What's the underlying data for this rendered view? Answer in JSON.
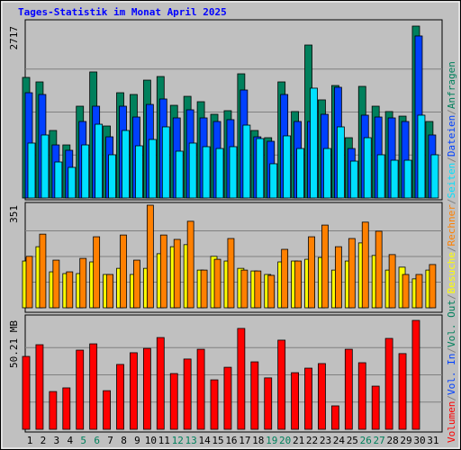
{
  "legend_separator": "/",
  "chart_data": [
    {
      "type": "bar",
      "title": "Tages-Statistik im Monat April 2025",
      "ylim": [
        0,
        2717
      ],
      "yticks": [
        2717
      ],
      "series": [
        {
          "name": "Anfragen",
          "color": "#00805c",
          "values": [
            1906,
            1835,
            1067,
            839,
            1451,
            1992,
            1138,
            1664,
            1636,
            1863,
            1920,
            1465,
            1607,
            1522,
            1323,
            1380,
            1963,
            1067,
            953,
            1835,
            1366,
            2418,
            1551,
            1778,
            953,
            1764,
            1451,
            1366,
            1294,
            2717,
            1209
          ]
        },
        {
          "name": "Dateien",
          "color": "#0040ff",
          "values": [
            1664,
            1636,
            839,
            754,
            1209,
            1451,
            967,
            1451,
            1280,
            1479,
            1565,
            1266,
            1394,
            1266,
            1209,
            1238,
            1707,
            967,
            896,
            1636,
            1209,
            1209,
            1323,
            1750,
            782,
            1309,
            1280,
            1266,
            1209,
            2561,
            996
          ]
        },
        {
          "name": "Seiten",
          "color": "#00e0ff",
          "values": [
            868,
            996,
            569,
            484,
            839,
            1166,
            683,
            1067,
            825,
            925,
            1124,
            740,
            868,
            811,
            782,
            811,
            1152,
            939,
            541,
            982,
            782,
            1736,
            782,
            1124,
            583,
            953,
            683,
            597,
            597,
            1309,
            683
          ]
        }
      ]
    },
    {
      "type": "bar",
      "ylim": [
        0,
        351
      ],
      "yticks": [
        351
      ],
      "series": [
        {
          "name": "Besuche",
          "color": "#ffff00",
          "values": [
            160,
            209,
            123,
            117,
            117,
            157,
            114,
            135,
            114,
            135,
            185,
            209,
            216,
            129,
            176,
            160,
            135,
            126,
            114,
            157,
            160,
            166,
            172,
            129,
            160,
            222,
            179,
            129,
            139,
            99,
            129
          ]
        },
        {
          "name": "Rechner",
          "color": "#ff8000",
          "values": [
            176,
            252,
            163,
            123,
            169,
            243,
            114,
            249,
            163,
            351,
            249,
            234,
            296,
            129,
            166,
            237,
            129,
            126,
            111,
            200,
            160,
            243,
            283,
            209,
            237,
            293,
            262,
            182,
            114,
            114,
            148
          ]
        }
      ]
    },
    {
      "type": "bar",
      "ylim": [
        0,
        50.21
      ],
      "yticks": [
        {
          "value": 50.21,
          "label": "50.21 MB"
        }
      ],
      "categories": [
        "1",
        "2",
        "3",
        "4",
        "5",
        "6",
        "7",
        "8",
        "9",
        "10",
        "11",
        "12",
        "13",
        "14",
        "15",
        "16",
        "17",
        "18",
        "19",
        "20",
        "21",
        "22",
        "23",
        "24",
        "25",
        "26",
        "27",
        "28",
        "29",
        "30",
        "31"
      ],
      "category_colors": [
        "#000000",
        "#000000",
        "#000000",
        "#000000",
        "#00805c",
        "#00805c",
        "#000000",
        "#000000",
        "#000000",
        "#000000",
        "#000000",
        "#00805c",
        "#00805c",
        "#000000",
        "#000000",
        "#000000",
        "#000000",
        "#000000",
        "#00805c",
        "#00805c",
        "#000000",
        "#000000",
        "#000000",
        "#000000",
        "#000000",
        "#00805c",
        "#00805c",
        "#000000",
        "#000000",
        "#000000",
        "#000000"
      ],
      "series": [
        {
          "name": "Volumen",
          "color": "#ff0000",
          "values": [
            33.6,
            39.0,
            17.4,
            19.1,
            36.5,
            39.4,
            17.8,
            29.9,
            35.3,
            37.3,
            42.3,
            25.7,
            32.4,
            36.9,
            22.8,
            28.6,
            46.5,
            31.1,
            23.7,
            41.1,
            26.1,
            28.2,
            30.3,
            10.8,
            36.9,
            30.7,
            19.9,
            41.9,
            34.9,
            50.21,
            0
          ]
        },
        {
          "name": "Vol. In",
          "color": "#0040ff",
          "values": [
            null,
            null,
            null,
            null,
            null,
            null,
            null,
            null,
            null,
            null,
            null,
            null,
            null,
            null,
            null,
            null,
            null,
            null,
            null,
            null,
            null,
            null,
            null,
            null,
            null,
            null,
            null,
            null,
            null,
            null,
            null
          ]
        },
        {
          "name": "Vol. Out",
          "color": "#00805c",
          "values": [
            null,
            null,
            null,
            null,
            null,
            null,
            null,
            null,
            null,
            null,
            null,
            null,
            null,
            null,
            null,
            null,
            null,
            null,
            null,
            null,
            null,
            null,
            null,
            null,
            null,
            null,
            null,
            null,
            null,
            null,
            null
          ]
        }
      ]
    }
  ]
}
